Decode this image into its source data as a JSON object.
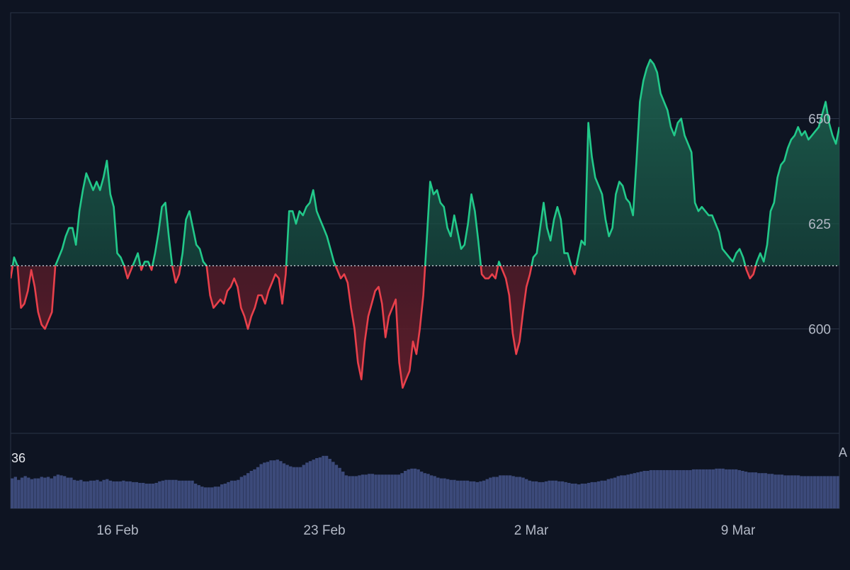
{
  "chart_data": [
    {
      "type": "area",
      "x_ticks": [
        "16 Feb",
        "23 Feb",
        "2 Mar",
        "9 Mar"
      ],
      "y_ticks": [
        600,
        625,
        650
      ],
      "ylim": [
        575,
        675
      ],
      "baseline": 615,
      "grid": true,
      "colors": {
        "above": "#22c98a",
        "below": "#e8404b",
        "above_fill": "#1b5b49",
        "below_fill": "#5a1e2b",
        "grid": "#2b3447",
        "baseline": "#d9dde6",
        "tick_text": "#b3b9c6",
        "background": "#0e1422"
      },
      "values": [
        612,
        617,
        615,
        605,
        606,
        609,
        614,
        610,
        604,
        601,
        600,
        602,
        604,
        615,
        617,
        619,
        622,
        624,
        624,
        620,
        628,
        633,
        637,
        635,
        633,
        635,
        633,
        636,
        640,
        632,
        629,
        618,
        617,
        615,
        612,
        614,
        616,
        618,
        614,
        616,
        616,
        614,
        618,
        623,
        629,
        630,
        622,
        615,
        611,
        613,
        618,
        626,
        628,
        624,
        620,
        619,
        616,
        615,
        608,
        605,
        606,
        607,
        606,
        609,
        610,
        612,
        610,
        605,
        603,
        600,
        603,
        605,
        608,
        608,
        606,
        609,
        611,
        613,
        612,
        606,
        613,
        628,
        628,
        625,
        628,
        627,
        629,
        630,
        633,
        628,
        626,
        624,
        622,
        619,
        616,
        614,
        612,
        613,
        611,
        605,
        600,
        592,
        588,
        597,
        603,
        606,
        609,
        610,
        606,
        598,
        603,
        605,
        607,
        592,
        586,
        588,
        590,
        597,
        594,
        600,
        608,
        621,
        635,
        632,
        633,
        630,
        629,
        624,
        622,
        627,
        623,
        619,
        620,
        625,
        632,
        628,
        621,
        613,
        612,
        612,
        613,
        612,
        616,
        614,
        612,
        608,
        599,
        594,
        597,
        604,
        610,
        613,
        617,
        618,
        624,
        630,
        624,
        621,
        626,
        629,
        626,
        618,
        618,
        615,
        613,
        617,
        621,
        620,
        649,
        641,
        636,
        634,
        632,
        626,
        622,
        624,
        632,
        635,
        634,
        631,
        630,
        627,
        640,
        654,
        659,
        662,
        664,
        663,
        661,
        656,
        654,
        652,
        648,
        646,
        649,
        650,
        646,
        644,
        642,
        630,
        628,
        629,
        628,
        627,
        627,
        625,
        623,
        619,
        618,
        617,
        616,
        618,
        619,
        617,
        614,
        612,
        613,
        616,
        618,
        616,
        620,
        628,
        630,
        636,
        639,
        640,
        643,
        645,
        646,
        648,
        646,
        647,
        645,
        646,
        647,
        648,
        651,
        654,
        649,
        646,
        644,
        648
      ]
    },
    {
      "type": "bar",
      "values": [
        40,
        42,
        38,
        41,
        43,
        41,
        39,
        40,
        40,
        42,
        41,
        42,
        40,
        43,
        45,
        44,
        43,
        41,
        41,
        38,
        37,
        38,
        36,
        36,
        37,
        37,
        38,
        36,
        38,
        39,
        37,
        36,
        36,
        36,
        37,
        36,
        36,
        35,
        35,
        34,
        34,
        33,
        33,
        33,
        34,
        36,
        37,
        38,
        38,
        38,
        38,
        37,
        37,
        37,
        37,
        37,
        33,
        31,
        29,
        28,
        28,
        28,
        29,
        29,
        32,
        33,
        35,
        37,
        37,
        38,
        42,
        44,
        47,
        50,
        52,
        55,
        59,
        61,
        62,
        64,
        64,
        65,
        63,
        60,
        58,
        56,
        55,
        55,
        55,
        58,
        61,
        63,
        65,
        67,
        68,
        70,
        70,
        66,
        62,
        58,
        54,
        49,
        44,
        43,
        43,
        43,
        44,
        45,
        45,
        46,
        46,
        45,
        45,
        45,
        45,
        45,
        45,
        45,
        45,
        47,
        50,
        52,
        53,
        53,
        52,
        49,
        47,
        46,
        44,
        43,
        41,
        40,
        40,
        39,
        38,
        38,
        37,
        37,
        37,
        37,
        36,
        36,
        35,
        36,
        37,
        39,
        41,
        42,
        42,
        44,
        44,
        44,
        44,
        43,
        42,
        42,
        41,
        39,
        37,
        36,
        36,
        35,
        35,
        36,
        37,
        37,
        37,
        36,
        36,
        35,
        34,
        33,
        33,
        32,
        33,
        33,
        34,
        35,
        35,
        36,
        37,
        37,
        39,
        40,
        41,
        43,
        44,
        44,
        45,
        46,
        47,
        48,
        49,
        50,
        50,
        51,
        51,
        51,
        51,
        51,
        51,
        51,
        51,
        51,
        51,
        51,
        51,
        51,
        52,
        52,
        52,
        52,
        52,
        52,
        52,
        53,
        53,
        53,
        52,
        52,
        52,
        52,
        51,
        50,
        49,
        48,
        48,
        48,
        47,
        47,
        47,
        46,
        46,
        45,
        45,
        45,
        44,
        44,
        44,
        44,
        44,
        43,
        43,
        43,
        43,
        43,
        43,
        43,
        43,
        43,
        43,
        43,
        43
      ],
      "ylim": [
        0,
        100
      ],
      "color": "#3c4a7a",
      "label": "36",
      "right_label": "A"
    }
  ]
}
